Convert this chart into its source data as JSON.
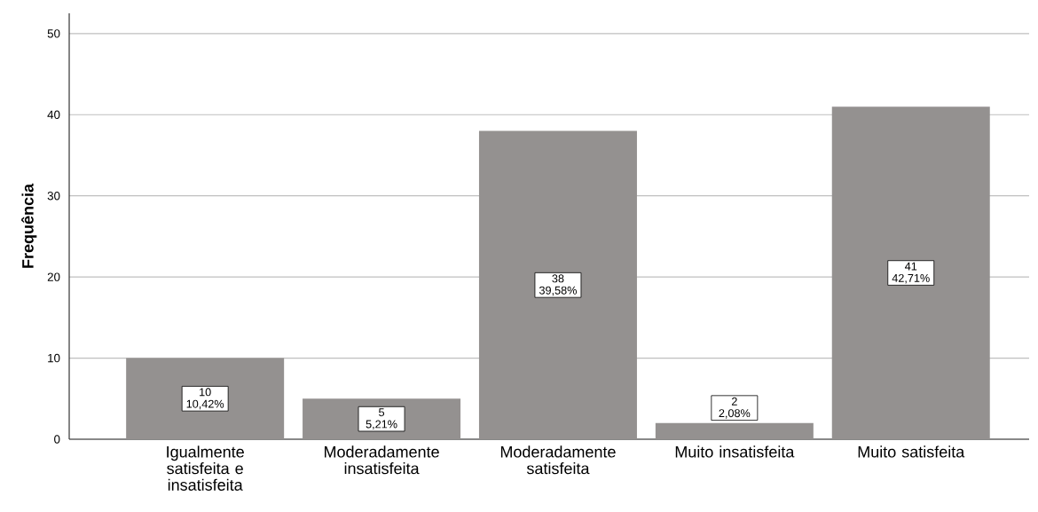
{
  "chart_data": {
    "type": "bar",
    "ylabel": "Frequência",
    "categories": [
      "Igualmente satisfeita e insatisfeita",
      "Moderadamente insatisfeita",
      "Moderadamente satisfeita",
      "Muito insatisfeita",
      "Muito satisfeita"
    ],
    "values": [
      10,
      5,
      38,
      2,
      41
    ],
    "value_labels": [
      "10 10,42%",
      "5 5,21%",
      "38 39,58%",
      "2 2,08%",
      "41 42,71%"
    ],
    "color": "#949190",
    "ylim": [
      0,
      52.5
    ],
    "yticks": [
      0,
      10,
      20,
      30,
      40,
      50
    ],
    "grid": "y"
  }
}
